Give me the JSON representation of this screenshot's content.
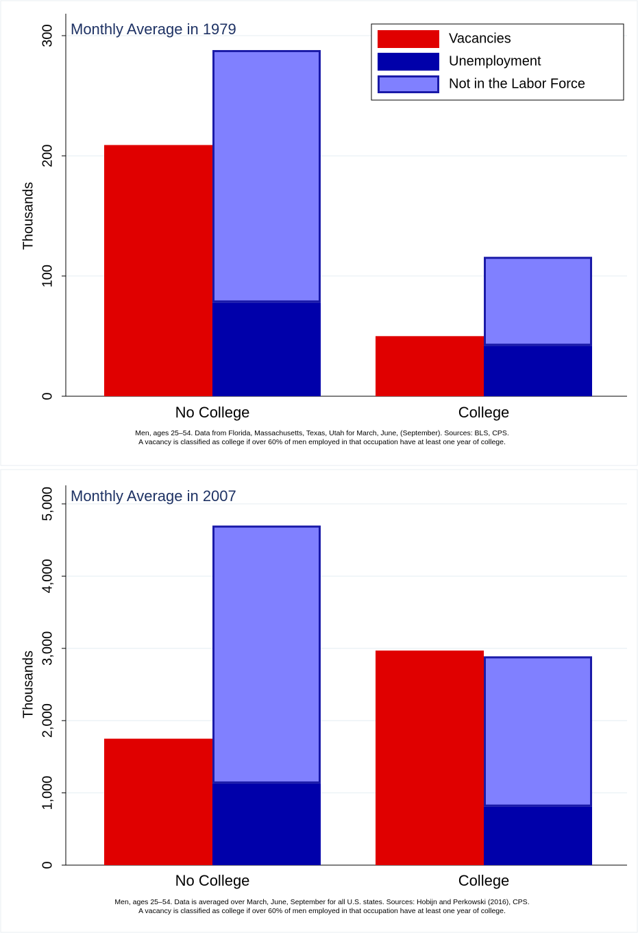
{
  "chart_data": [
    {
      "type": "bar",
      "title": "Monthly Average in 1979",
      "ylabel": "Thousands",
      "categories": [
        "No College",
        "College"
      ],
      "series": [
        {
          "name": "Vacancies",
          "color": "#e00000",
          "group": 0,
          "values": [
            209,
            50
          ]
        },
        {
          "name": "Unemployment",
          "color": "#0000aa",
          "group": 1,
          "values": [
            78,
            42
          ]
        },
        {
          "name": "Not in the Labor Force",
          "color": "#8080ff",
          "group": 1,
          "values": [
            210,
            74
          ]
        }
      ],
      "ylim": [
        0,
        300
      ],
      "yticks": [
        0,
        100,
        200,
        300
      ],
      "grid": true,
      "legend": "top-right",
      "notes": [
        "Men, ages 25–54. Data from Florida, Massachusetts, Texas, Utah for March, June, (September). Sources: BLS, CPS.",
        "A vacancy is classified as college if over 60% of men employed in that occupation have at least one year of college."
      ]
    },
    {
      "type": "bar",
      "title": "Monthly Average in 2007",
      "ylabel": "Thousands",
      "categories": [
        "No College",
        "College"
      ],
      "series": [
        {
          "name": "Vacancies",
          "color": "#e00000",
          "group": 0,
          "values": [
            1750,
            2970
          ]
        },
        {
          "name": "Unemployment",
          "color": "#0000aa",
          "group": 1,
          "values": [
            1130,
            810
          ]
        },
        {
          "name": "Not in the Labor Force",
          "color": "#8080ff",
          "group": 1,
          "values": [
            3570,
            2080
          ]
        }
      ],
      "ylim": [
        0,
        5000
      ],
      "yticks": [
        0,
        {
          "value": 1000,
          "label": "1,000"
        },
        {
          "value": 2000,
          "label": "2,000"
        },
        {
          "value": 3000,
          "label": "3,000"
        },
        {
          "value": 4000,
          "label": "4,000"
        },
        {
          "value": 5000,
          "label": "5,000"
        }
      ],
      "grid": true,
      "legend": null,
      "notes": [
        "Men, ages 25–54. Data is averaged over March, June, September for all U.S. states.  Sources: Hobijn and Perkowski (2016), CPS.",
        "A vacancy is classified as college if over 60% of men employed in that occupation have at least one year of college."
      ]
    }
  ]
}
